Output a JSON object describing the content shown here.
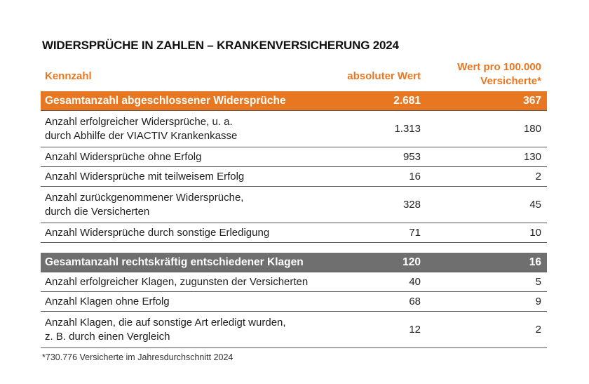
{
  "title": "WIDERSPRÜCHE IN ZAHLEN – KRANKENVERSICHERUNG 2024",
  "header": {
    "kennzahl": "Kennzahl",
    "absolut": "absoluter Wert",
    "relativ_line1": "Wert pro 100.000",
    "relativ_line2": "Versicherte*"
  },
  "widersprueche": {
    "summary": {
      "label": "Gesamtanzahl abgeschlossener Widersprüche",
      "abs": "2.681",
      "rel": "367"
    },
    "rows": [
      {
        "line1": "Anzahl erfolgreicher Widersprüche, u. a.",
        "line2": "durch Abhilfe der VIACTIV Krankenkasse",
        "abs": "1.313",
        "rel": "180"
      },
      {
        "line1": "Anzahl Widersprüche ohne Erfolg",
        "abs": "953",
        "rel": "130"
      },
      {
        "line1": "Anzahl Widersprüche mit teilweisem Erfolg",
        "abs": "16",
        "rel": "2"
      },
      {
        "line1": "Anzahl zurückgenommener Widersprüche,",
        "line2": "durch die Versicherten",
        "abs": "328",
        "rel": "45"
      },
      {
        "line1": "Anzahl Widersprüche durch sonstige Erledigung",
        "abs": "71",
        "rel": "10"
      }
    ]
  },
  "klagen": {
    "summary": {
      "label": "Gesamtanzahl rechtskräftig entschiedener Klagen",
      "abs": "120",
      "rel": "16"
    },
    "rows": [
      {
        "line1": "Anzahl erfolgreicher Klagen, zugunsten der Versicherten",
        "abs": "40",
        "rel": "5"
      },
      {
        "line1": "Anzahl Klagen ohne Erfolg",
        "abs": "68",
        "rel": "9"
      },
      {
        "line1": "Anzahl Klagen, die auf sonstige Art erledigt wurden,",
        "line2": "z. B. durch einen Vergleich",
        "abs": "12",
        "rel": "2"
      }
    ]
  },
  "footnote": "*730.776 Versicherte im Jahresdurchschnitt 2024"
}
